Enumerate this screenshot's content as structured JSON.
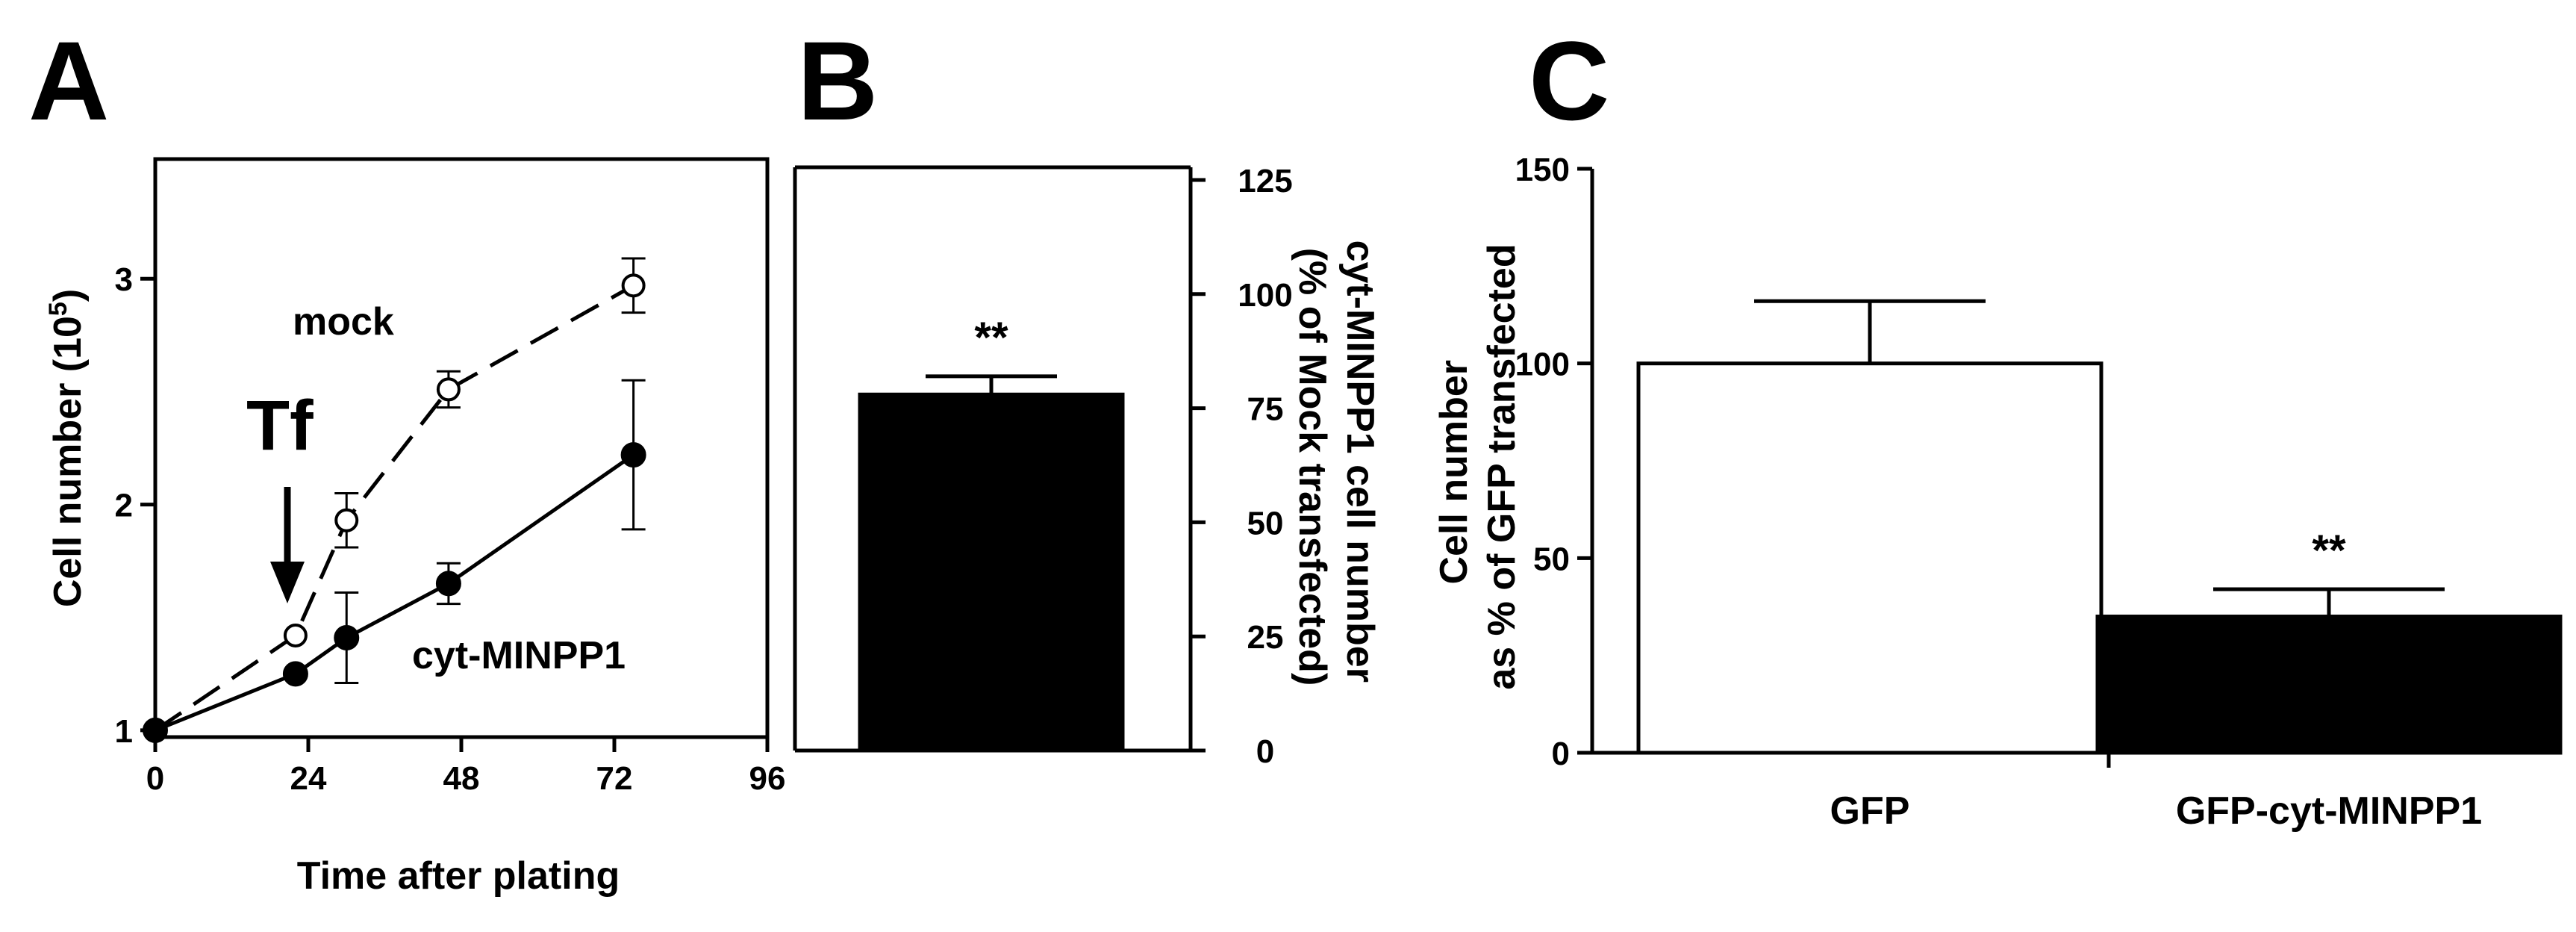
{
  "chart_data": [
    {
      "panel": "A",
      "type": "line",
      "xlabel": "Time after plating",
      "ylabel_main": "Cell number (10",
      "ylabel_sup": "5",
      "ylabel_close": ")",
      "xticks": [
        0,
        24,
        48,
        72,
        96
      ],
      "yticks": [
        1,
        2,
        3
      ],
      "xlim": [
        0,
        96
      ],
      "ylim": [
        0.97,
        3.53
      ],
      "series": [
        {
          "name": "mock",
          "style": "dashed",
          "marker": "open-circle",
          "x": [
            0,
            22,
            30,
            46,
            75
          ],
          "y": [
            1.0,
            1.42,
            1.93,
            2.51,
            2.97
          ],
          "err": [
            0.0,
            0.0,
            0.12,
            0.08,
            0.12
          ]
        },
        {
          "name": "cyt-MINPP1",
          "style": "solid",
          "marker": "filled-circle",
          "x": [
            0,
            22,
            30,
            46,
            75
          ],
          "y": [
            1.0,
            1.25,
            1.41,
            1.65,
            2.22
          ],
          "err": [
            0.0,
            0.0,
            0.2,
            0.09,
            0.33
          ]
        }
      ],
      "annotations": {
        "arrow_label": "Tf",
        "arrow_x": 22
      }
    },
    {
      "panel": "B",
      "type": "bar",
      "ylabel_line1": "cyt-MINPP1 cell number",
      "ylabel_line2": "(% of Mock transfected)",
      "yticks": [
        0,
        25,
        50,
        75,
        100,
        125
      ],
      "ylim": [
        0,
        125
      ],
      "bars": [
        {
          "value": 78,
          "err": 4,
          "fill": "#000000",
          "significance": "**"
        }
      ]
    },
    {
      "panel": "C",
      "type": "bar",
      "ylabel_line1": "Cell number",
      "ylabel_line2": "as % of GFP transfected",
      "yticks": [
        0,
        50,
        100,
        150
      ],
      "ylim": [
        0,
        150
      ],
      "categories": [
        "GFP",
        "GFP-cyt-MINPP1"
      ],
      "bars": [
        {
          "value": 100,
          "err": 16,
          "fill": "#ffffff",
          "significance": ""
        },
        {
          "value": 35,
          "err": 7,
          "fill": "#000000",
          "significance": "**"
        }
      ]
    }
  ]
}
